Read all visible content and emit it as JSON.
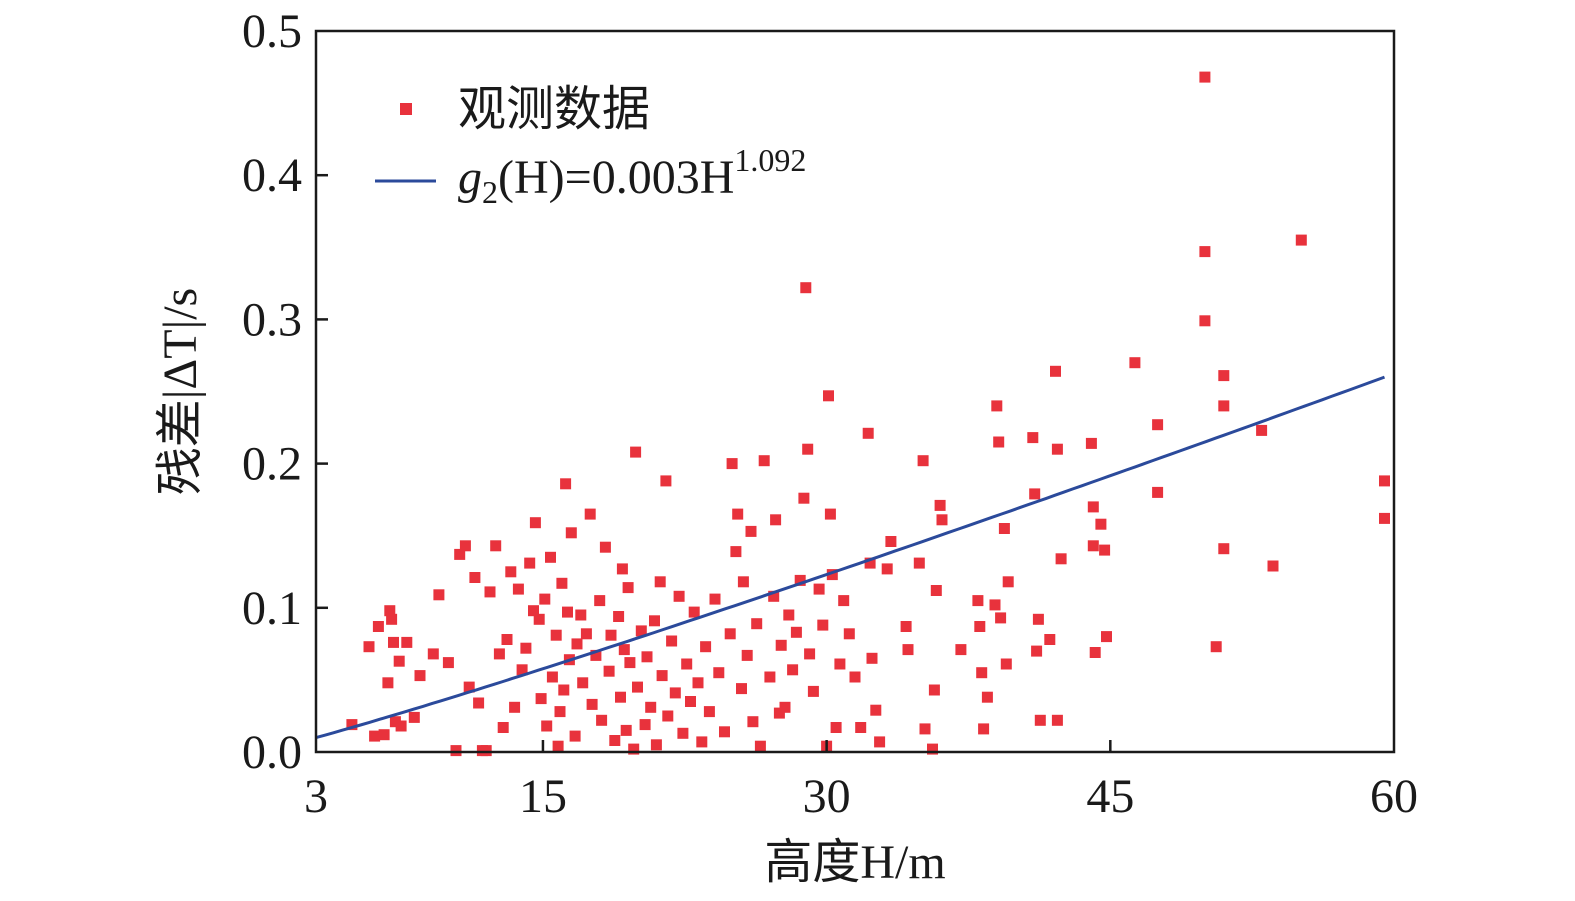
{
  "chart_data": {
    "type": "scatter",
    "xlabel": "高度H/m",
    "ylabel": "残差|ΔT|/s",
    "xlim": [
      3,
      60
    ],
    "ylim": [
      0,
      0.5
    ],
    "xticks": [
      "3",
      "15",
      "30",
      "45",
      "60"
    ],
    "xtick_values": [
      3,
      15,
      30,
      45,
      60
    ],
    "yticks": [
      "0.0",
      "0.1",
      "0.2",
      "0.3",
      "0.4",
      "0.5"
    ],
    "ytick_values": [
      0,
      0.1,
      0.2,
      0.3,
      0.4,
      0.5
    ],
    "grid": false,
    "legend_position": "top-left",
    "colors": {
      "points": "#e8323c",
      "fit": "#2b4a9b",
      "axes": "#1a1a1a"
    },
    "legend": {
      "points_label": "观测数据",
      "fit_label_prefix": "g",
      "fit_label_sub": "2",
      "fit_label_mid": "(H)=0.003H",
      "fit_label_sup": "1.092"
    },
    "fit": {
      "a": 0.003,
      "b": 1.092,
      "x_range": [
        3,
        59.5
      ]
    },
    "series": [
      {
        "name": "观测数据",
        "points": [
          [
            4.9,
            0.019
          ],
          [
            5.8,
            0.073
          ],
          [
            6.1,
            0.011
          ],
          [
            6.3,
            0.087
          ],
          [
            6.6,
            0.012
          ],
          [
            6.8,
            0.048
          ],
          [
            6.9,
            0.098
          ],
          [
            7.0,
            0.092
          ],
          [
            7.1,
            0.076
          ],
          [
            7.2,
            0.021
          ],
          [
            7.4,
            0.063
          ],
          [
            7.5,
            0.018
          ],
          [
            7.8,
            0.076
          ],
          [
            8.2,
            0.024
          ],
          [
            8.5,
            0.053
          ],
          [
            9.2,
            0.068
          ],
          [
            9.5,
            0.109
          ],
          [
            10.0,
            0.062
          ],
          [
            10.4,
            0.001
          ],
          [
            10.6,
            0.137
          ],
          [
            10.9,
            0.143
          ],
          [
            11.1,
            0.045
          ],
          [
            11.4,
            0.121
          ],
          [
            11.6,
            0.034
          ],
          [
            11.8,
            0.001
          ],
          [
            12.0,
            0.001
          ],
          [
            12.2,
            0.111
          ],
          [
            12.5,
            0.143
          ],
          [
            12.7,
            0.068
          ],
          [
            12.9,
            0.017
          ],
          [
            13.1,
            0.078
          ],
          [
            13.3,
            0.125
          ],
          [
            13.5,
            0.031
          ],
          [
            13.7,
            0.113
          ],
          [
            13.9,
            0.057
          ],
          [
            14.1,
            0.072
          ],
          [
            14.3,
            0.131
          ],
          [
            14.5,
            0.098
          ],
          [
            14.6,
            0.159
          ],
          [
            14.8,
            0.092
          ],
          [
            14.9,
            0.037
          ],
          [
            15.1,
            0.106
          ],
          [
            15.2,
            0.018
          ],
          [
            15.4,
            0.135
          ],
          [
            15.5,
            0.052
          ],
          [
            15.7,
            0.081
          ],
          [
            15.8,
            0.004
          ],
          [
            15.9,
            0.028
          ],
          [
            16.0,
            0.117
          ],
          [
            16.1,
            0.043
          ],
          [
            16.2,
            0.186
          ],
          [
            16.3,
            0.097
          ],
          [
            16.4,
            0.064
          ],
          [
            16.5,
            0.152
          ],
          [
            16.7,
            0.011
          ],
          [
            16.8,
            0.075
          ],
          [
            17.0,
            0.095
          ],
          [
            17.1,
            0.048
          ],
          [
            17.3,
            0.082
          ],
          [
            17.5,
            0.165
          ],
          [
            17.6,
            0.033
          ],
          [
            17.8,
            0.067
          ],
          [
            18.0,
            0.105
          ],
          [
            18.1,
            0.022
          ],
          [
            18.3,
            0.142
          ],
          [
            18.5,
            0.056
          ],
          [
            18.6,
            0.081
          ],
          [
            18.8,
            0.008
          ],
          [
            19.0,
            0.094
          ],
          [
            19.1,
            0.038
          ],
          [
            19.2,
            0.127
          ],
          [
            19.3,
            0.071
          ],
          [
            19.4,
            0.015
          ],
          [
            19.5,
            0.114
          ],
          [
            19.6,
            0.062
          ],
          [
            19.8,
            0.002
          ],
          [
            19.9,
            0.208
          ],
          [
            20.0,
            0.045
          ],
          [
            20.2,
            0.084
          ],
          [
            20.4,
            0.019
          ],
          [
            20.5,
            0.066
          ],
          [
            20.7,
            0.031
          ],
          [
            20.9,
            0.091
          ],
          [
            21.0,
            0.005
          ],
          [
            21.2,
            0.118
          ],
          [
            21.3,
            0.053
          ],
          [
            21.5,
            0.188
          ],
          [
            21.6,
            0.025
          ],
          [
            21.8,
            0.077
          ],
          [
            22.0,
            0.041
          ],
          [
            22.2,
            0.108
          ],
          [
            22.4,
            0.013
          ],
          [
            22.6,
            0.061
          ],
          [
            22.8,
            0.035
          ],
          [
            23.0,
            0.097
          ],
          [
            23.2,
            0.048
          ],
          [
            23.4,
            0.007
          ],
          [
            23.6,
            0.073
          ],
          [
            23.8,
            0.028
          ],
          [
            24.1,
            0.106
          ],
          [
            24.3,
            0.055
          ],
          [
            24.6,
            0.014
          ],
          [
            24.9,
            0.082
          ],
          [
            25.0,
            0.2
          ],
          [
            25.2,
            0.139
          ],
          [
            25.3,
            0.165
          ],
          [
            25.5,
            0.044
          ],
          [
            25.6,
            0.118
          ],
          [
            25.8,
            0.067
          ],
          [
            26.0,
            0.153
          ],
          [
            26.1,
            0.021
          ],
          [
            26.3,
            0.089
          ],
          [
            26.5,
            0.004
          ],
          [
            26.7,
            0.202
          ],
          [
            27.0,
            0.052
          ],
          [
            27.2,
            0.108
          ],
          [
            27.3,
            0.161
          ],
          [
            27.5,
            0.027
          ],
          [
            27.6,
            0.074
          ],
          [
            27.8,
            0.031
          ],
          [
            28.0,
            0.095
          ],
          [
            28.2,
            0.057
          ],
          [
            28.4,
            0.083
          ],
          [
            28.6,
            0.119
          ],
          [
            28.8,
            0.176
          ],
          [
            28.9,
            0.322
          ],
          [
            29.0,
            0.21
          ],
          [
            29.1,
            0.068
          ],
          [
            29.3,
            0.042
          ],
          [
            29.6,
            0.113
          ],
          [
            29.8,
            0.088
          ],
          [
            30.0,
            0.004
          ],
          [
            30.1,
            0.247
          ],
          [
            30.2,
            0.165
          ],
          [
            30.3,
            0.123
          ],
          [
            30.5,
            0.017
          ],
          [
            30.7,
            0.061
          ],
          [
            30.9,
            0.105
          ],
          [
            31.2,
            0.082
          ],
          [
            31.5,
            0.052
          ],
          [
            31.8,
            0.017
          ],
          [
            32.2,
            0.221
          ],
          [
            32.3,
            0.131
          ],
          [
            32.4,
            0.065
          ],
          [
            32.6,
            0.029
          ],
          [
            32.8,
            0.007
          ],
          [
            33.2,
            0.127
          ],
          [
            33.4,
            0.146
          ],
          [
            34.2,
            0.087
          ],
          [
            34.3,
            0.071
          ],
          [
            34.9,
            0.131
          ],
          [
            35.1,
            0.202
          ],
          [
            35.2,
            0.016
          ],
          [
            35.6,
            0.002
          ],
          [
            35.7,
            0.043
          ],
          [
            35.8,
            0.112
          ],
          [
            36.0,
            0.171
          ],
          [
            36.1,
            0.161
          ],
          [
            37.1,
            0.071
          ],
          [
            38.0,
            0.105
          ],
          [
            38.1,
            0.087
          ],
          [
            38.2,
            0.055
          ],
          [
            38.3,
            0.016
          ],
          [
            38.5,
            0.038
          ],
          [
            38.9,
            0.102
          ],
          [
            39.0,
            0.24
          ],
          [
            39.1,
            0.215
          ],
          [
            39.2,
            0.093
          ],
          [
            39.4,
            0.155
          ],
          [
            39.5,
            0.061
          ],
          [
            39.6,
            0.118
          ],
          [
            40.9,
            0.218
          ],
          [
            41.0,
            0.179
          ],
          [
            41.1,
            0.07
          ],
          [
            41.2,
            0.092
          ],
          [
            41.3,
            0.022
          ],
          [
            41.8,
            0.078
          ],
          [
            42.1,
            0.264
          ],
          [
            42.2,
            0.21
          ],
          [
            42.2,
            0.022
          ],
          [
            42.4,
            0.134
          ],
          [
            44.0,
            0.214
          ],
          [
            44.1,
            0.17
          ],
          [
            44.1,
            0.143
          ],
          [
            44.2,
            0.069
          ],
          [
            44.5,
            0.158
          ],
          [
            44.7,
            0.14
          ],
          [
            44.8,
            0.08
          ],
          [
            46.3,
            0.27
          ],
          [
            47.5,
            0.227
          ],
          [
            47.5,
            0.18
          ],
          [
            50.0,
            0.468
          ],
          [
            50.0,
            0.347
          ],
          [
            50.0,
            0.299
          ],
          [
            50.6,
            0.073
          ],
          [
            51.0,
            0.261
          ],
          [
            51.0,
            0.24
          ],
          [
            51.0,
            0.141
          ],
          [
            53.0,
            0.223
          ],
          [
            53.6,
            0.129
          ],
          [
            55.1,
            0.355
          ],
          [
            59.5,
            0.188
          ],
          [
            59.5,
            0.162
          ]
        ]
      }
    ]
  }
}
